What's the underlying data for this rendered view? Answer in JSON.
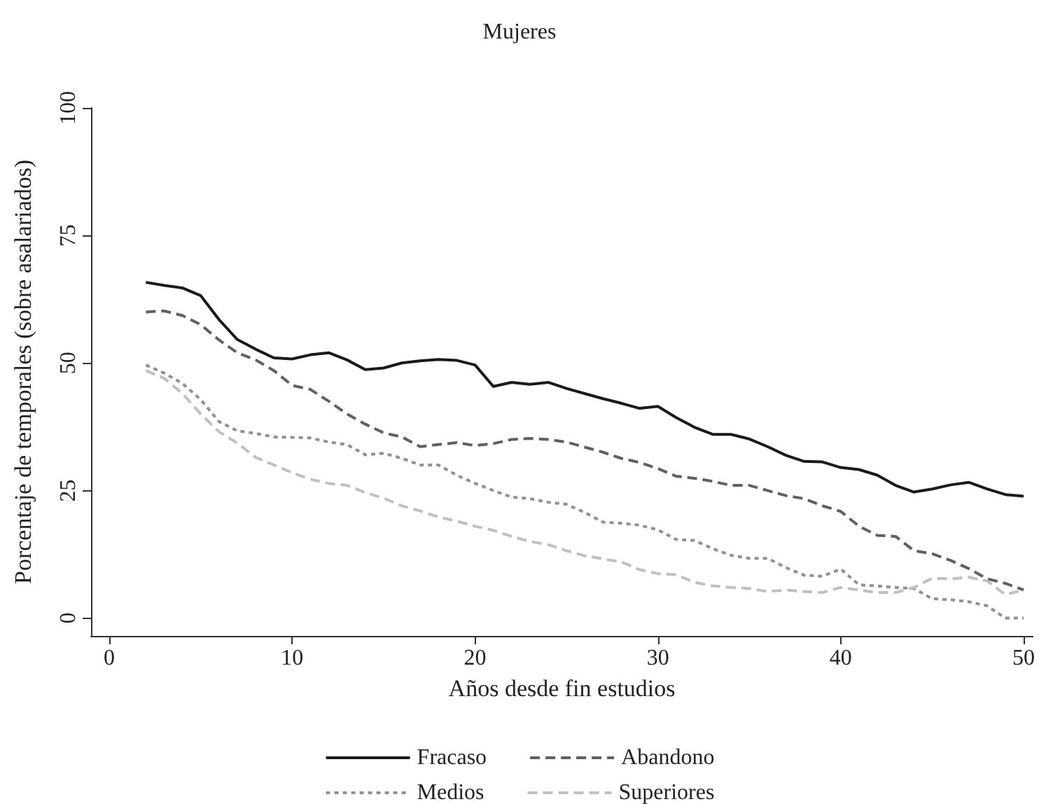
{
  "chart_data": {
    "type": "line",
    "title": "Mujeres",
    "xlabel": "Años desde fin estudios",
    "ylabel": "Porcentaje de temporales (sobre asalariados)",
    "x": [
      2,
      3,
      4,
      5,
      6,
      7,
      8,
      9,
      10,
      11,
      12,
      13,
      14,
      15,
      16,
      17,
      18,
      19,
      20,
      21,
      22,
      23,
      24,
      25,
      26,
      27,
      28,
      29,
      30,
      31,
      32,
      33,
      34,
      35,
      36,
      37,
      38,
      39,
      40,
      41,
      42,
      43,
      44,
      45,
      46,
      47,
      48,
      49,
      50
    ],
    "series": [
      {
        "name": "Fracaso",
        "color": "#1a1a1a",
        "line_style": "solid",
        "values": [
          65.8,
          65.2,
          64.7,
          63.2,
          58.5,
          54.6,
          52.7,
          51,
          50.8,
          51.6,
          52,
          50.6,
          48.7,
          49,
          50,
          50.4,
          50.7,
          50.5,
          49.6,
          45.4,
          46.2,
          45.8,
          46.2,
          45,
          44,
          43,
          42.1,
          41.1,
          41.5,
          39.3,
          37.4,
          36,
          36,
          35.1,
          33.6,
          31.9,
          30.7,
          30.6,
          29.5,
          29.1,
          28,
          26,
          24.7,
          25.3,
          26.1,
          26.6,
          25.3,
          24.2,
          23.9
        ]
      },
      {
        "name": "Abandono",
        "color": "#606060",
        "line_style": "dashed",
        "values": [
          60,
          60.2,
          59.3,
          57.5,
          54.5,
          52,
          50.6,
          48.5,
          45.6,
          44.8,
          42.5,
          40,
          38,
          36.3,
          35.5,
          33.6,
          34,
          34.4,
          33.8,
          34.2,
          35,
          35.2,
          35,
          34.5,
          33.5,
          32.5,
          31.3,
          30.5,
          29.3,
          27.8,
          27.4,
          26.8,
          26,
          26,
          25,
          24,
          23.4,
          22,
          20.9,
          18,
          16.2,
          16,
          13.2,
          12.6,
          11.3,
          9.7,
          7.7,
          6.8,
          5.5
        ]
      },
      {
        "name": "Medios",
        "color": "#909090",
        "line_style": "dotted",
        "values": [
          49.6,
          48,
          46,
          42.8,
          38.5,
          36.7,
          36.2,
          35.5,
          35.4,
          35.3,
          34.5,
          34,
          32,
          32.3,
          31.3,
          30,
          30,
          28,
          26.4,
          25,
          23.7,
          23.4,
          22.7,
          22.3,
          20.7,
          18.8,
          18.6,
          18.2,
          17.3,
          15.4,
          15.2,
          13.6,
          12.3,
          11.7,
          11.7,
          9.9,
          8.4,
          8.2,
          9.6,
          6.5,
          6.3,
          6,
          5.8,
          3.8,
          3.6,
          3.2,
          2.4,
          0,
          0
        ]
      },
      {
        "name": "Superiores",
        "color": "#c0c0c0",
        "line_style": "dashed",
        "values": [
          48.5,
          47,
          44,
          40,
          36.5,
          34.3,
          31.5,
          30,
          28.5,
          27.2,
          26.4,
          26,
          24.6,
          23.5,
          22,
          21,
          19.8,
          19,
          18,
          17.2,
          16,
          15,
          14.4,
          13.2,
          12.2,
          11.6,
          11,
          9.5,
          8.7,
          8.5,
          7,
          6.3,
          6,
          5.8,
          5.2,
          5.5,
          5.2,
          5,
          6,
          5.5,
          5,
          5,
          6,
          7.8,
          7.7,
          8,
          7.3,
          4.6,
          5.5
        ]
      }
    ],
    "xlim": [
      -1,
      50.5
    ],
    "ylim": [
      -3.5,
      100
    ],
    "xticks": [
      0,
      10,
      20,
      30,
      40,
      50
    ],
    "yticks": [
      0,
      25,
      50,
      75,
      100
    ],
    "grid": false,
    "legend": "bottom",
    "marker": "none"
  }
}
